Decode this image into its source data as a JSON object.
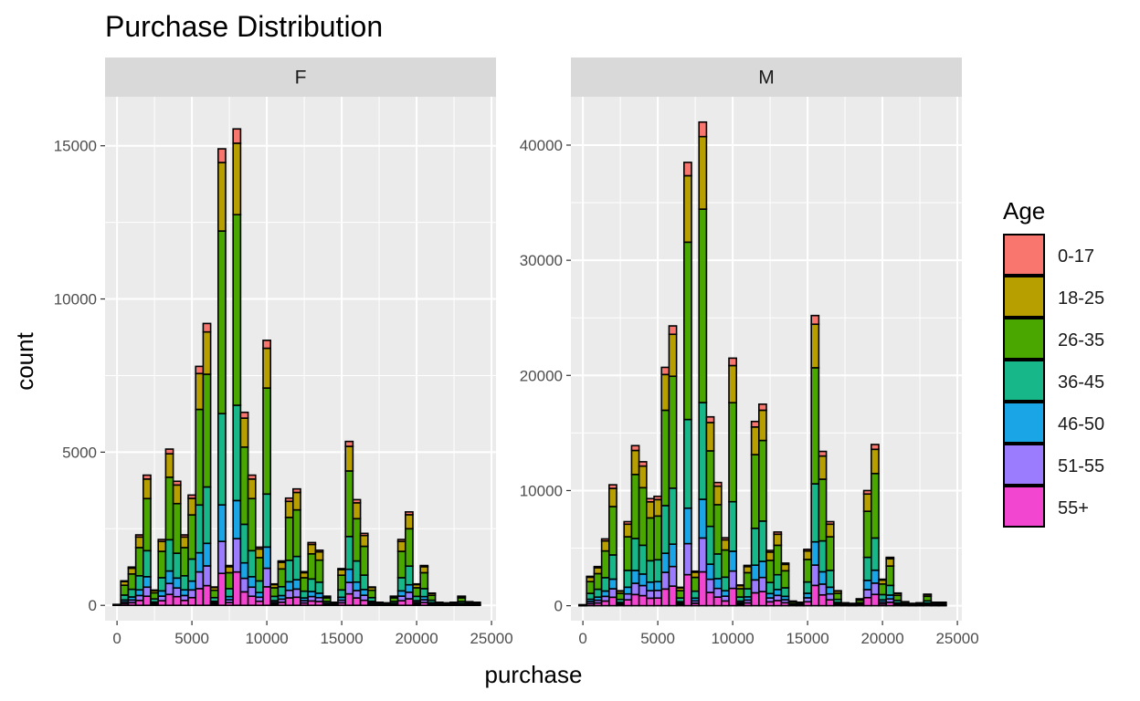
{
  "chart_data": {
    "type": "bar",
    "title": "Purchase Distribution",
    "xlabel": "purchase",
    "ylabel": "count",
    "stacked": true,
    "facets": [
      "F",
      "M"
    ],
    "legend": {
      "title": "Age",
      "position": "right",
      "entries": [
        {
          "name": "0-17",
          "color": "#F8766D"
        },
        {
          "name": "18-25",
          "color": "#B79F00"
        },
        {
          "name": "26-35",
          "color": "#49A700"
        },
        {
          "name": "36-45",
          "color": "#17B78A"
        },
        {
          "name": "46-50",
          "color": "#1AA6E6"
        },
        {
          "name": "51-55",
          "color": "#9B7CFF"
        },
        {
          "name": "55+",
          "color": "#F346D0"
        }
      ]
    },
    "x_ticks": [
      0,
      5000,
      10000,
      15000,
      20000,
      25000
    ],
    "x_tick_labels": [
      "0",
      "5000",
      "10000",
      "15000",
      "20000",
      "25000"
    ],
    "xlim": [
      -800,
      25300
    ],
    "bin_width": 500,
    "bins": [
      0,
      500,
      1000,
      1500,
      2000,
      2500,
      3000,
      3500,
      4000,
      4500,
      5000,
      5500,
      6000,
      6500,
      7000,
      7500,
      8000,
      8500,
      9000,
      9500,
      10000,
      10500,
      11000,
      11500,
      12000,
      12500,
      13000,
      13500,
      14000,
      14500,
      15000,
      15500,
      16000,
      16500,
      17000,
      17500,
      18000,
      18500,
      19000,
      19500,
      20000,
      20500,
      21000,
      21500,
      22000,
      22500,
      23000,
      23500,
      24000
    ],
    "panels": [
      {
        "facet": "F",
        "ylim": [
          -500,
          16600
        ],
        "y_ticks": [
          0,
          5000,
          10000,
          15000
        ],
        "y_tick_labels": [
          "0",
          "5000",
          "10000",
          "15000"
        ],
        "totals": [
          30,
          800,
          1250,
          2300,
          4250,
          500,
          2150,
          5100,
          4050,
          2300,
          3600,
          7800,
          9200,
          600,
          14900,
          1300,
          15550,
          6300,
          4250,
          1900,
          8650,
          700,
          1450,
          3500,
          3800,
          1100,
          2050,
          1800,
          300,
          100,
          1200,
          5350,
          3450,
          2350,
          600,
          100,
          80,
          300,
          2150,
          3050,
          700,
          1300,
          400,
          100,
          80,
          100,
          300,
          120,
          100
        ]
      },
      {
        "facet": "M",
        "ylim": [
          -1300,
          44200
        ],
        "y_ticks": [
          0,
          10000,
          20000,
          30000,
          40000
        ],
        "y_tick_labels": [
          "0",
          "10000",
          "20000",
          "30000",
          "40000"
        ],
        "totals": [
          80,
          2550,
          3400,
          5800,
          10500,
          1300,
          7300,
          13900,
          12500,
          9300,
          9500,
          20700,
          24300,
          1600,
          38500,
          3000,
          42000,
          16400,
          10700,
          5900,
          21500,
          1800,
          3500,
          16000,
          17500,
          4800,
          6400,
          3700,
          400,
          300,
          4900,
          25200,
          13400,
          7300,
          1300,
          250,
          200,
          600,
          10000,
          14000,
          2300,
          4200,
          1100,
          350,
          200,
          250,
          1000,
          300,
          300
        ]
      }
    ],
    "age_share": [
      0.03,
      0.15,
      0.4,
      0.2,
      0.08,
      0.07,
      0.07
    ]
  }
}
